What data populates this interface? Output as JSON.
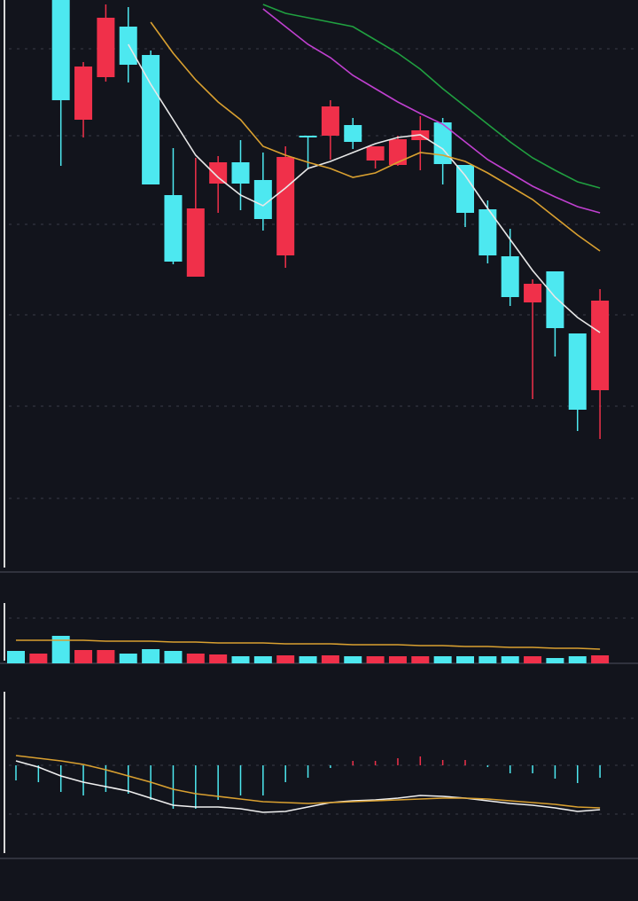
{
  "chart_data": [
    {
      "type": "candlestick",
      "categories": [
        null,
        null,
        null,
        null,
        null,
        null,
        null,
        null,
        null,
        null,
        null,
        null,
        null,
        null,
        null,
        null,
        null,
        null,
        null,
        null,
        null,
        null,
        null,
        null,
        null,
        null,
        null
      ],
      "open": [
        null,
        null,
        640,
        505,
        553,
        610,
        578,
        420,
        328,
        433,
        457,
        437,
        352,
        487,
        487,
        499,
        459,
        454,
        482,
        502,
        454,
        404,
        351,
        299,
        334,
        264,
        200
      ],
      "high": [
        null,
        null,
        640,
        570,
        635,
        632,
        583,
        473,
        462,
        464,
        482,
        468,
        475,
        487,
        527,
        507,
        475,
        487,
        509,
        507,
        454,
        414,
        382,
        325,
        334,
        264,
        314
      ],
      "low": [
        null,
        null,
        453,
        485,
        548,
        547,
        432,
        342,
        328,
        400,
        403,
        380,
        338,
        450,
        460,
        472,
        450,
        453,
        448,
        432,
        384,
        343,
        295,
        190,
        238,
        154,
        145
      ],
      "close": [
        null,
        null,
        527,
        565,
        620,
        567,
        432,
        345,
        405,
        457,
        433,
        393,
        463,
        485,
        520,
        480,
        475,
        483,
        493,
        455,
        400,
        352,
        305,
        320,
        270,
        178,
        301
      ],
      "up_color": "#f0304a",
      "down_color": "#4de8f0",
      "series": [
        {
          "color": "#e8e8e8",
          "values": [
            null,
            null,
            null,
            null,
            null,
            590,
            545,
            505,
            465,
            440,
            420,
            408,
            428,
            450,
            458,
            468,
            478,
            485,
            488,
            472,
            442,
            405,
            370,
            335,
            305,
            282,
            265
          ]
        },
        {
          "color": "#d9a030",
          "values": [
            null,
            null,
            null,
            null,
            null,
            null,
            615,
            580,
            550,
            525,
            505,
            475,
            465,
            457,
            450,
            440,
            445,
            457,
            468,
            465,
            458,
            445,
            430,
            415,
            395,
            375,
            357
          ]
        },
        {
          "color": "#c040d0",
          "values": [
            null,
            null,
            null,
            null,
            null,
            null,
            null,
            null,
            null,
            null,
            null,
            630,
            610,
            590,
            575,
            555,
            540,
            525,
            512,
            500,
            480,
            460,
            445,
            430,
            418,
            407,
            400
          ]
        },
        {
          "color": "#20a040",
          "values": [
            null,
            null,
            null,
            null,
            null,
            null,
            null,
            null,
            null,
            null,
            null,
            635,
            625,
            620,
            615,
            610,
            595,
            580,
            562,
            540,
            520,
            500,
            480,
            462,
            448,
            435,
            428
          ]
        }
      ],
      "ylim": [
        0,
        640
      ]
    },
    {
      "type": "bar",
      "values": [
        14,
        11,
        31,
        15,
        15,
        11,
        16,
        14,
        11,
        10,
        8,
        8,
        9,
        8,
        9,
        8,
        8,
        8,
        8,
        8,
        8,
        8,
        8,
        8,
        6,
        8,
        9
      ],
      "bar_colors": [
        "#4de8f0",
        "#f0304a",
        "#4de8f0",
        "#f0304a",
        "#f0304a",
        "#4de8f0",
        "#4de8f0",
        "#4de8f0",
        "#f0304a",
        "#f0304a",
        "#4de8f0",
        "#4de8f0",
        "#f0304a",
        "#4de8f0",
        "#f0304a",
        "#4de8f0",
        "#f0304a",
        "#f0304a",
        "#f0304a",
        "#4de8f0",
        "#4de8f0",
        "#4de8f0",
        "#4de8f0",
        "#f0304a",
        "#4de8f0",
        "#4de8f0",
        "#f0304a"
      ],
      "series": [
        {
          "color": "#d9a030",
          "values": [
            26,
            26,
            26,
            26,
            25,
            25,
            25,
            24,
            24,
            23,
            23,
            23,
            22,
            22,
            22,
            21,
            21,
            21,
            20,
            20,
            19,
            19,
            18,
            18,
            17,
            17,
            16
          ]
        }
      ],
      "ylim": [
        0,
        103
      ]
    },
    {
      "type": "macd",
      "values": [
        -17,
        -19,
        -30,
        -34,
        -30,
        -32,
        -39,
        -49,
        -49,
        -39,
        -34,
        -34,
        -19,
        -14,
        -3,
        5,
        5,
        8,
        10,
        6,
        6,
        -2,
        -9,
        -9,
        -15,
        -20,
        -14
      ],
      "up_color": "#f0304a",
      "down_color": "#4de8f0",
      "series": [
        {
          "color": "#f0f0f0",
          "values": [
            5,
            -2,
            -12,
            -19,
            -24,
            -29,
            -37,
            -45,
            -47,
            -47,
            -49,
            -53,
            -52,
            -47,
            -42,
            -40,
            -39,
            -37,
            -34,
            -35,
            -37,
            -40,
            -43,
            -45,
            -48,
            -52,
            -50
          ]
        },
        {
          "color": "#d9a030",
          "values": [
            11,
            8,
            5,
            1,
            -5,
            -12,
            -19,
            -27,
            -32,
            -35,
            -38,
            -41,
            -42,
            -43,
            -42,
            -41,
            -40,
            -39,
            -38,
            -37,
            -37,
            -38,
            -40,
            -42,
            -44,
            -47,
            -48
          ]
        }
      ],
      "ylim": [
        -105,
        115
      ]
    }
  ]
}
